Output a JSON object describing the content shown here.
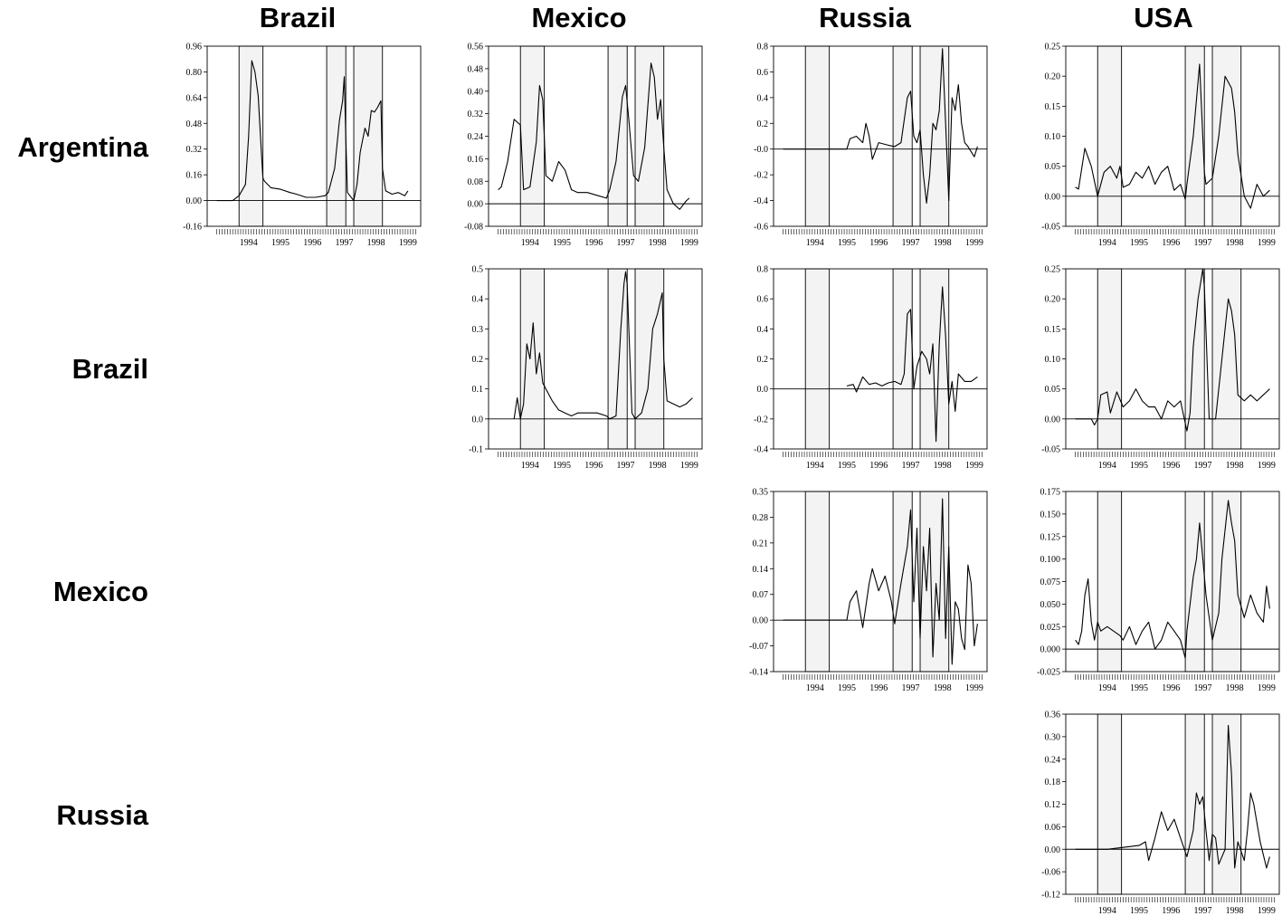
{
  "column_headers": [
    "Brazil",
    "Mexico",
    "Russia",
    "USA"
  ],
  "row_headers": [
    "Argentina",
    "Brazil",
    "Mexico",
    "Russia"
  ],
  "chart_data": [
    {
      "type": "line",
      "row": "Argentina",
      "column": "Brazil",
      "ylim": [
        -0.16,
        0.96
      ],
      "yticks": [
        0.96,
        0.8,
        0.64,
        0.48,
        0.32,
        0.16,
        0.0,
        -0.16
      ],
      "yticklabels": [
        "0.96",
        "0.80",
        "0.64",
        "0.48",
        "0.32",
        "0.16",
        "0.00",
        "-0.16"
      ],
      "xlim": [
        1993.2,
        1999.9
      ],
      "xticklabels": [
        "1994",
        "1995",
        "1996",
        "1997",
        "1998",
        "1999"
      ],
      "shaded_periods": [
        [
          1994.2,
          1994.95
        ],
        [
          1996.95,
          1997.55
        ],
        [
          1997.8,
          1998.7
        ]
      ],
      "x": [
        1993.5,
        1994.0,
        1994.2,
        1994.4,
        1994.5,
        1994.6,
        1994.7,
        1994.8,
        1994.9,
        1994.95,
        1995.0,
        1995.2,
        1995.5,
        1995.8,
        1996.0,
        1996.3,
        1996.6,
        1996.9,
        1997.0,
        1997.2,
        1997.35,
        1997.45,
        1997.5,
        1997.55,
        1997.6,
        1997.8,
        1997.9,
        1998.0,
        1998.15,
        1998.25,
        1998.35,
        1998.45,
        1998.55,
        1998.65,
        1998.7,
        1998.8,
        1999.0,
        1999.2,
        1999.4,
        1999.5
      ],
      "y": [
        0.0,
        0.0,
        0.03,
        0.1,
        0.4,
        0.87,
        0.8,
        0.65,
        0.3,
        0.14,
        0.12,
        0.08,
        0.07,
        0.05,
        0.04,
        0.02,
        0.02,
        0.03,
        0.05,
        0.2,
        0.5,
        0.62,
        0.77,
        0.4,
        0.05,
        0.0,
        0.1,
        0.3,
        0.45,
        0.4,
        0.56,
        0.55,
        0.58,
        0.62,
        0.2,
        0.06,
        0.04,
        0.05,
        0.03,
        0.06
      ]
    },
    {
      "type": "line",
      "row": "Argentina",
      "column": "Mexico",
      "ylim": [
        -0.08,
        0.56
      ],
      "yticks": [
        0.56,
        0.48,
        0.4,
        0.32,
        0.24,
        0.16,
        0.08,
        0.0,
        -0.08
      ],
      "yticklabels": [
        "0.56",
        "0.48",
        "0.40",
        "0.32",
        "0.24",
        "0.16",
        "0.08",
        "0.00",
        "-0.08"
      ],
      "xlim": [
        1993.2,
        1999.9
      ],
      "xticklabels": [
        "1994",
        "1995",
        "1996",
        "1997",
        "1998",
        "1999"
      ],
      "shaded_periods": [
        [
          1994.2,
          1994.95
        ],
        [
          1996.95,
          1997.55
        ],
        [
          1997.8,
          1998.7
        ]
      ],
      "x": [
        1993.5,
        1993.6,
        1993.8,
        1994.0,
        1994.2,
        1994.3,
        1994.5,
        1994.7,
        1994.8,
        1994.9,
        1995.0,
        1995.2,
        1995.4,
        1995.6,
        1995.8,
        1996.0,
        1996.3,
        1996.6,
        1996.9,
        1997.0,
        1997.2,
        1997.4,
        1997.5,
        1997.6,
        1997.75,
        1997.9,
        1998.1,
        1998.3,
        1998.4,
        1998.5,
        1998.6,
        1998.7,
        1998.8,
        1999.0,
        1999.2,
        1999.4,
        1999.5
      ],
      "y": [
        0.05,
        0.06,
        0.15,
        0.3,
        0.28,
        0.05,
        0.06,
        0.22,
        0.42,
        0.37,
        0.1,
        0.08,
        0.15,
        0.12,
        0.05,
        0.04,
        0.04,
        0.03,
        0.02,
        0.05,
        0.15,
        0.38,
        0.42,
        0.3,
        0.1,
        0.08,
        0.2,
        0.5,
        0.45,
        0.3,
        0.37,
        0.2,
        0.05,
        0.0,
        -0.02,
        0.01,
        0.02
      ]
    },
    {
      "type": "line",
      "row": "Argentina",
      "column": "Russia",
      "ylim": [
        -0.6,
        0.8
      ],
      "yticks": [
        0.8,
        0.6,
        0.4,
        0.2,
        -0.0,
        -0.2,
        -0.4,
        -0.6
      ],
      "yticklabels": [
        "0.8",
        "0.6",
        "0.4",
        "0.2",
        "-0.0",
        "-0.2",
        "-0.4",
        "-0.6"
      ],
      "xlim": [
        1993.2,
        1999.9
      ],
      "xticklabels": [
        "1994",
        "1995",
        "1996",
        "1997",
        "1998",
        "1999"
      ],
      "shaded_periods": [
        [
          1994.2,
          1994.95
        ],
        [
          1996.95,
          1997.55
        ],
        [
          1997.8,
          1998.7
        ]
      ],
      "x": [
        1993.5,
        1994.5,
        1995.5,
        1995.6,
        1995.8,
        1996.0,
        1996.1,
        1996.2,
        1996.3,
        1996.5,
        1996.8,
        1997.0,
        1997.2,
        1997.4,
        1997.5,
        1997.6,
        1997.7,
        1997.8,
        1997.9,
        1998.0,
        1998.1,
        1998.2,
        1998.3,
        1998.4,
        1998.5,
        1998.6,
        1998.7,
        1998.8,
        1998.9,
        1999.0,
        1999.1,
        1999.2,
        1999.3,
        1999.5,
        1999.6
      ],
      "y": [
        0.0,
        0.0,
        0.0,
        0.08,
        0.1,
        0.05,
        0.2,
        0.1,
        -0.08,
        0.05,
        0.03,
        0.02,
        0.05,
        0.4,
        0.45,
        0.1,
        0.05,
        0.15,
        -0.2,
        -0.42,
        -0.2,
        0.2,
        0.15,
        0.3,
        0.78,
        0.2,
        -0.4,
        0.4,
        0.3,
        0.5,
        0.2,
        0.05,
        0.02,
        -0.06,
        0.02
      ]
    },
    {
      "type": "line",
      "row": "Argentina",
      "column": "USA",
      "ylim": [
        -0.05,
        0.25
      ],
      "yticks": [
        0.25,
        0.2,
        0.15,
        0.1,
        0.05,
        0.0,
        -0.05
      ],
      "yticklabels": [
        "0.25",
        "0.20",
        "0.15",
        "0.10",
        "0.05",
        "0.00",
        "-0.05"
      ],
      "xlim": [
        1993.2,
        1999.9
      ],
      "xticklabels": [
        "1994",
        "1995",
        "1996",
        "1997",
        "1998",
        "1999"
      ],
      "shaded_periods": [
        [
          1994.2,
          1994.95
        ],
        [
          1996.95,
          1997.55
        ],
        [
          1997.8,
          1998.7
        ]
      ],
      "x": [
        1993.5,
        1993.6,
        1993.8,
        1994.0,
        1994.2,
        1994.4,
        1994.6,
        1994.8,
        1994.9,
        1995.0,
        1995.2,
        1995.4,
        1995.6,
        1995.8,
        1996.0,
        1996.2,
        1996.4,
        1996.6,
        1996.8,
        1996.95,
        1997.0,
        1997.2,
        1997.4,
        1997.55,
        1997.6,
        1997.8,
        1998.0,
        1998.2,
        1998.4,
        1998.5,
        1998.6,
        1998.8,
        1999.0,
        1999.2,
        1999.4,
        1999.6
      ],
      "y": [
        0.015,
        0.012,
        0.08,
        0.05,
        0.0,
        0.04,
        0.05,
        0.03,
        0.05,
        0.015,
        0.02,
        0.04,
        0.03,
        0.05,
        0.02,
        0.04,
        0.05,
        0.01,
        0.02,
        -0.005,
        0.02,
        0.1,
        0.22,
        0.04,
        0.02,
        0.03,
        0.1,
        0.2,
        0.18,
        0.14,
        0.07,
        0.0,
        -0.02,
        0.02,
        0.0,
        0.01
      ]
    },
    {
      "type": "line",
      "row": "Brazil",
      "column": "Mexico",
      "ylim": [
        -0.1,
        0.5
      ],
      "yticks": [
        0.5,
        0.4,
        0.3,
        0.2,
        0.1,
        0.0,
        -0.1
      ],
      "yticklabels": [
        "0.5",
        "0.4",
        "0.3",
        "0.2",
        "0.1",
        "0.0",
        "-0.1"
      ],
      "xlim": [
        1993.2,
        1999.9
      ],
      "xticklabels": [
        "1994",
        "1995",
        "1996",
        "1997",
        "1998",
        "1999"
      ],
      "shaded_periods": [
        [
          1994.2,
          1994.95
        ],
        [
          1996.95,
          1997.55
        ],
        [
          1997.8,
          1998.7
        ]
      ],
      "x": [
        1994.0,
        1994.1,
        1994.2,
        1994.3,
        1994.4,
        1994.5,
        1994.6,
        1994.7,
        1994.8,
        1994.9,
        1995.0,
        1995.2,
        1995.4,
        1995.6,
        1995.8,
        1996.0,
        1996.3,
        1996.6,
        1996.9,
        1997.0,
        1997.2,
        1997.35,
        1997.45,
        1997.5,
        1997.55,
        1997.7,
        1997.8,
        1998.0,
        1998.2,
        1998.35,
        1998.5,
        1998.65,
        1998.7,
        1998.8,
        1999.0,
        1999.2,
        1999.4,
        1999.6
      ],
      "y": [
        0.0,
        0.07,
        0.0,
        0.05,
        0.25,
        0.2,
        0.32,
        0.15,
        0.22,
        0.12,
        0.1,
        0.06,
        0.03,
        0.02,
        0.01,
        0.02,
        0.02,
        0.02,
        0.01,
        0.0,
        0.01,
        0.3,
        0.45,
        0.49,
        0.45,
        0.02,
        0.0,
        0.02,
        0.1,
        0.3,
        0.35,
        0.42,
        0.2,
        0.06,
        0.05,
        0.04,
        0.05,
        0.07
      ]
    },
    {
      "type": "line",
      "row": "Brazil",
      "column": "Russia",
      "ylim": [
        -0.4,
        0.8
      ],
      "yticks": [
        0.8,
        0.6,
        0.4,
        0.2,
        0.0,
        -0.2,
        -0.4
      ],
      "yticklabels": [
        "0.8",
        "0.6",
        "0.4",
        "0.2",
        "0.0",
        "-0.2",
        "-0.4"
      ],
      "xlim": [
        1993.2,
        1999.9
      ],
      "xticklabels": [
        "1994",
        "1995",
        "1996",
        "1997",
        "1998",
        "1999"
      ],
      "shaded_periods": [
        [
          1994.2,
          1994.95
        ],
        [
          1996.95,
          1997.55
        ],
        [
          1997.8,
          1998.7
        ]
      ],
      "x": [
        1995.5,
        1995.7,
        1995.8,
        1996.0,
        1996.2,
        1996.4,
        1996.6,
        1996.8,
        1997.0,
        1997.2,
        1997.3,
        1997.4,
        1997.5,
        1997.6,
        1997.7,
        1997.85,
        1998.0,
        1998.1,
        1998.2,
        1998.3,
        1998.4,
        1998.5,
        1998.6,
        1998.7,
        1998.8,
        1998.9,
        1999.0,
        1999.2,
        1999.4,
        1999.6
      ],
      "y": [
        0.02,
        0.03,
        -0.02,
        0.08,
        0.03,
        0.04,
        0.02,
        0.04,
        0.05,
        0.03,
        0.1,
        0.5,
        0.53,
        0.0,
        0.15,
        0.25,
        0.2,
        0.1,
        0.3,
        -0.35,
        0.3,
        0.68,
        0.35,
        -0.1,
        0.05,
        -0.15,
        0.1,
        0.05,
        0.05,
        0.08
      ]
    },
    {
      "type": "line",
      "row": "Brazil",
      "column": "USA",
      "ylim": [
        -0.05,
        0.25
      ],
      "yticks": [
        0.25,
        0.2,
        0.15,
        0.1,
        0.05,
        0.0,
        -0.05
      ],
      "yticklabels": [
        "0.25",
        "0.20",
        "0.15",
        "0.10",
        "0.05",
        "0.00",
        "-0.05"
      ],
      "xlim": [
        1993.2,
        1999.9
      ],
      "xticklabels": [
        "1994",
        "1995",
        "1996",
        "1997",
        "1998",
        "1999"
      ],
      "shaded_periods": [
        [
          1994.2,
          1994.95
        ],
        [
          1996.95,
          1997.55
        ],
        [
          1997.8,
          1998.7
        ]
      ],
      "x": [
        1993.5,
        1994.0,
        1994.1,
        1994.2,
        1994.3,
        1994.5,
        1994.6,
        1994.8,
        1995.0,
        1995.2,
        1995.4,
        1995.6,
        1995.8,
        1996.0,
        1996.2,
        1996.4,
        1996.6,
        1996.8,
        1997.0,
        1997.1,
        1997.2,
        1997.35,
        1997.5,
        1997.55,
        1997.7,
        1997.9,
        1998.1,
        1998.3,
        1998.4,
        1998.5,
        1998.6,
        1998.8,
        1999.0,
        1999.2,
        1999.4,
        1999.6
      ],
      "y": [
        0.0,
        0.0,
        -0.01,
        0.0,
        0.04,
        0.045,
        0.01,
        0.045,
        0.02,
        0.03,
        0.05,
        0.03,
        0.02,
        0.02,
        0.0,
        0.03,
        0.02,
        0.03,
        -0.02,
        0.01,
        0.12,
        0.2,
        0.25,
        0.22,
        0.0,
        0.0,
        0.1,
        0.2,
        0.18,
        0.14,
        0.04,
        0.03,
        0.04,
        0.03,
        0.04,
        0.05
      ]
    },
    {
      "type": "line",
      "row": "Mexico",
      "column": "Russia",
      "ylim": [
        -0.14,
        0.35
      ],
      "yticks": [
        0.35,
        0.28,
        0.21,
        0.14,
        0.07,
        0.0,
        -0.07,
        -0.14
      ],
      "yticklabels": [
        "0.35",
        "0.28",
        "0.21",
        "0.14",
        "0.07",
        "0.00",
        "-0.07",
        "-0.14"
      ],
      "xlim": [
        1993.2,
        1999.9
      ],
      "xticklabels": [
        "1994",
        "1995",
        "1996",
        "1997",
        "1998",
        "1999"
      ],
      "shaded_periods": [
        [
          1994.2,
          1994.95
        ],
        [
          1996.95,
          1997.55
        ],
        [
          1997.8,
          1998.7
        ]
      ],
      "x": [
        1993.5,
        1994.5,
        1995.5,
        1995.6,
        1995.8,
        1996.0,
        1996.2,
        1996.3,
        1996.5,
        1996.7,
        1996.9,
        1997.0,
        1997.2,
        1997.4,
        1997.5,
        1997.6,
        1997.7,
        1997.8,
        1997.9,
        1998.0,
        1998.1,
        1998.2,
        1998.3,
        1998.4,
        1998.5,
        1998.6,
        1998.7,
        1998.8,
        1998.9,
        1999.0,
        1999.1,
        1999.2,
        1999.3,
        1999.4,
        1999.5,
        1999.6
      ],
      "y": [
        0.0,
        0.0,
        0.0,
        0.05,
        0.08,
        -0.02,
        0.1,
        0.14,
        0.08,
        0.12,
        0.05,
        -0.01,
        0.1,
        0.2,
        0.3,
        0.05,
        0.25,
        -0.05,
        0.2,
        0.08,
        0.25,
        -0.1,
        0.1,
        0.0,
        0.33,
        -0.05,
        0.2,
        -0.12,
        0.05,
        0.03,
        -0.05,
        -0.08,
        0.15,
        0.1,
        -0.07,
        -0.01
      ]
    },
    {
      "type": "line",
      "row": "Mexico",
      "column": "USA",
      "ylim": [
        -0.025,
        0.175
      ],
      "yticks": [
        0.175,
        0.15,
        0.125,
        0.1,
        0.075,
        0.05,
        0.025,
        0.0,
        -0.025
      ],
      "yticklabels": [
        "0.175",
        "0.150",
        "0.125",
        "0.100",
        "0.075",
        "0.050",
        "0.025",
        "0.000",
        "-0.025"
      ],
      "xlim": [
        1993.2,
        1999.9
      ],
      "xticklabels": [
        "1994",
        "1995",
        "1996",
        "1997",
        "1998",
        "1999"
      ],
      "shaded_periods": [
        [
          1994.2,
          1994.95
        ],
        [
          1996.95,
          1997.55
        ],
        [
          1997.8,
          1998.7
        ]
      ],
      "x": [
        1993.5,
        1993.6,
        1993.7,
        1993.8,
        1993.9,
        1994.0,
        1994.1,
        1994.2,
        1994.3,
        1994.5,
        1994.7,
        1994.9,
        1995.0,
        1995.2,
        1995.4,
        1995.6,
        1995.8,
        1996.0,
        1996.2,
        1996.4,
        1996.6,
        1996.8,
        1996.95,
        1997.0,
        1997.2,
        1997.3,
        1997.4,
        1997.5,
        1997.6,
        1997.8,
        1998.0,
        1998.1,
        1998.3,
        1998.4,
        1998.5,
        1998.6,
        1998.8,
        1999.0,
        1999.2,
        1999.4,
        1999.5,
        1999.6
      ],
      "y": [
        0.01,
        0.005,
        0.02,
        0.06,
        0.078,
        0.03,
        0.01,
        0.03,
        0.02,
        0.025,
        0.02,
        0.015,
        0.01,
        0.025,
        0.005,
        0.02,
        0.03,
        0.0,
        0.01,
        0.03,
        0.02,
        0.01,
        -0.01,
        0.02,
        0.08,
        0.1,
        0.14,
        0.1,
        0.06,
        0.01,
        0.04,
        0.1,
        0.165,
        0.14,
        0.12,
        0.06,
        0.035,
        0.06,
        0.04,
        0.03,
        0.07,
        0.045
      ]
    },
    {
      "type": "line",
      "row": "Russia",
      "column": "USA",
      "ylim": [
        -0.12,
        0.36
      ],
      "yticks": [
        0.36,
        0.3,
        0.24,
        0.18,
        0.12,
        0.06,
        0.0,
        -0.06,
        -0.12
      ],
      "yticklabels": [
        "0.36",
        "0.30",
        "0.24",
        "0.18",
        "0.12",
        "0.06",
        "0.00",
        "-0.06",
        "-0.12"
      ],
      "xlim": [
        1993.2,
        1999.9
      ],
      "xticklabels": [
        "1994",
        "1995",
        "1996",
        "1997",
        "1998",
        "1999"
      ],
      "shaded_periods": [
        [
          1994.2,
          1994.95
        ],
        [
          1996.95,
          1997.55
        ],
        [
          1997.8,
          1998.7
        ]
      ],
      "x": [
        1993.5,
        1994.5,
        1995.5,
        1995.7,
        1995.8,
        1996.0,
        1996.2,
        1996.4,
        1996.6,
        1996.8,
        1997.0,
        1997.2,
        1997.3,
        1997.4,
        1997.5,
        1997.6,
        1997.7,
        1997.8,
        1997.9,
        1998.0,
        1998.2,
        1998.3,
        1998.4,
        1998.5,
        1998.6,
        1998.8,
        1998.9,
        1999.0,
        1999.1,
        1999.2,
        1999.3,
        1999.5,
        1999.6
      ],
      "y": [
        0.0,
        0.0,
        0.01,
        0.02,
        -0.03,
        0.03,
        0.1,
        0.05,
        0.08,
        0.03,
        -0.02,
        0.05,
        0.15,
        0.12,
        0.14,
        0.05,
        -0.03,
        0.04,
        0.03,
        -0.04,
        0.0,
        0.33,
        0.2,
        -0.05,
        0.02,
        -0.03,
        0.05,
        0.15,
        0.12,
        0.07,
        0.02,
        -0.05,
        -0.02
      ]
    }
  ]
}
